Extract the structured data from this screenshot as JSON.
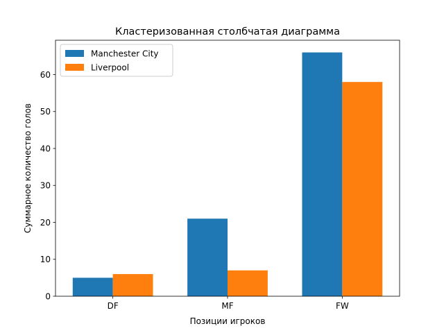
{
  "chart_data": {
    "type": "bar",
    "title": "Кластеризованная столбчатая диаграмма",
    "xlabel": "Позиции игроков",
    "ylabel": "Суммарное количество голов",
    "categories": [
      "DF",
      "MF",
      "FW"
    ],
    "series": [
      {
        "name": "Manchester City",
        "values": [
          5,
          21,
          66
        ],
        "color": "#1f77b4"
      },
      {
        "name": "Liverpool",
        "values": [
          6,
          7,
          58
        ],
        "color": "#ff7f0e"
      }
    ],
    "ylim": [
      0,
      69.3
    ],
    "yticks": [
      0,
      10,
      20,
      30,
      40,
      50,
      60
    ],
    "grid": false,
    "legend": "top-left"
  }
}
